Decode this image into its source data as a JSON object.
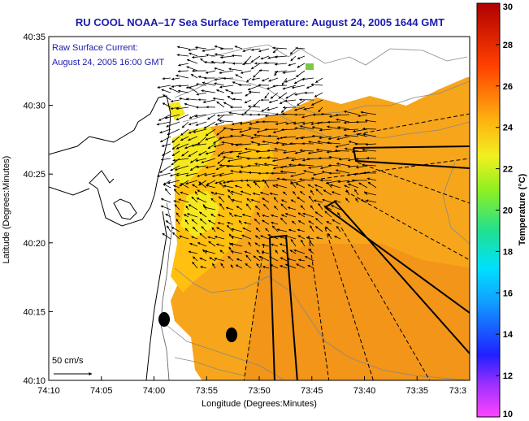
{
  "title": "RU COOL  NOAA–17  Sea Surface Temperature:  August 24, 2005 1644 GMT",
  "annotation": {
    "line1": "Raw Surface Current:",
    "line2": "August 24, 2005 16:00 GMT"
  },
  "scale_label": "50 cm/s",
  "axes": {
    "xlabel": "Longitude (Degrees:Minutes)",
    "ylabel": "Latitude (Degrees:Minutes)",
    "x_ticks": [
      "74:10",
      "74:05",
      "74:00",
      "73:55",
      "73:50",
      "73:45",
      "73:40",
      "73:35",
      "73:3"
    ],
    "y_ticks": [
      "40:35",
      "40:30",
      "40:25",
      "40:20",
      "40:15",
      "40:10"
    ]
  },
  "colorbar": {
    "label": "Temperature (°C)",
    "ticks": [
      "30",
      "28",
      "26",
      "24",
      "22",
      "20",
      "18",
      "16",
      "14",
      "12",
      "10"
    ],
    "min": 10,
    "max": 30
  },
  "colors": {
    "title": "#1b1bb0",
    "sst_warm": "#f7a51a",
    "sst_mid": "#ffc010",
    "sst_cool": "#f5e81f"
  }
}
